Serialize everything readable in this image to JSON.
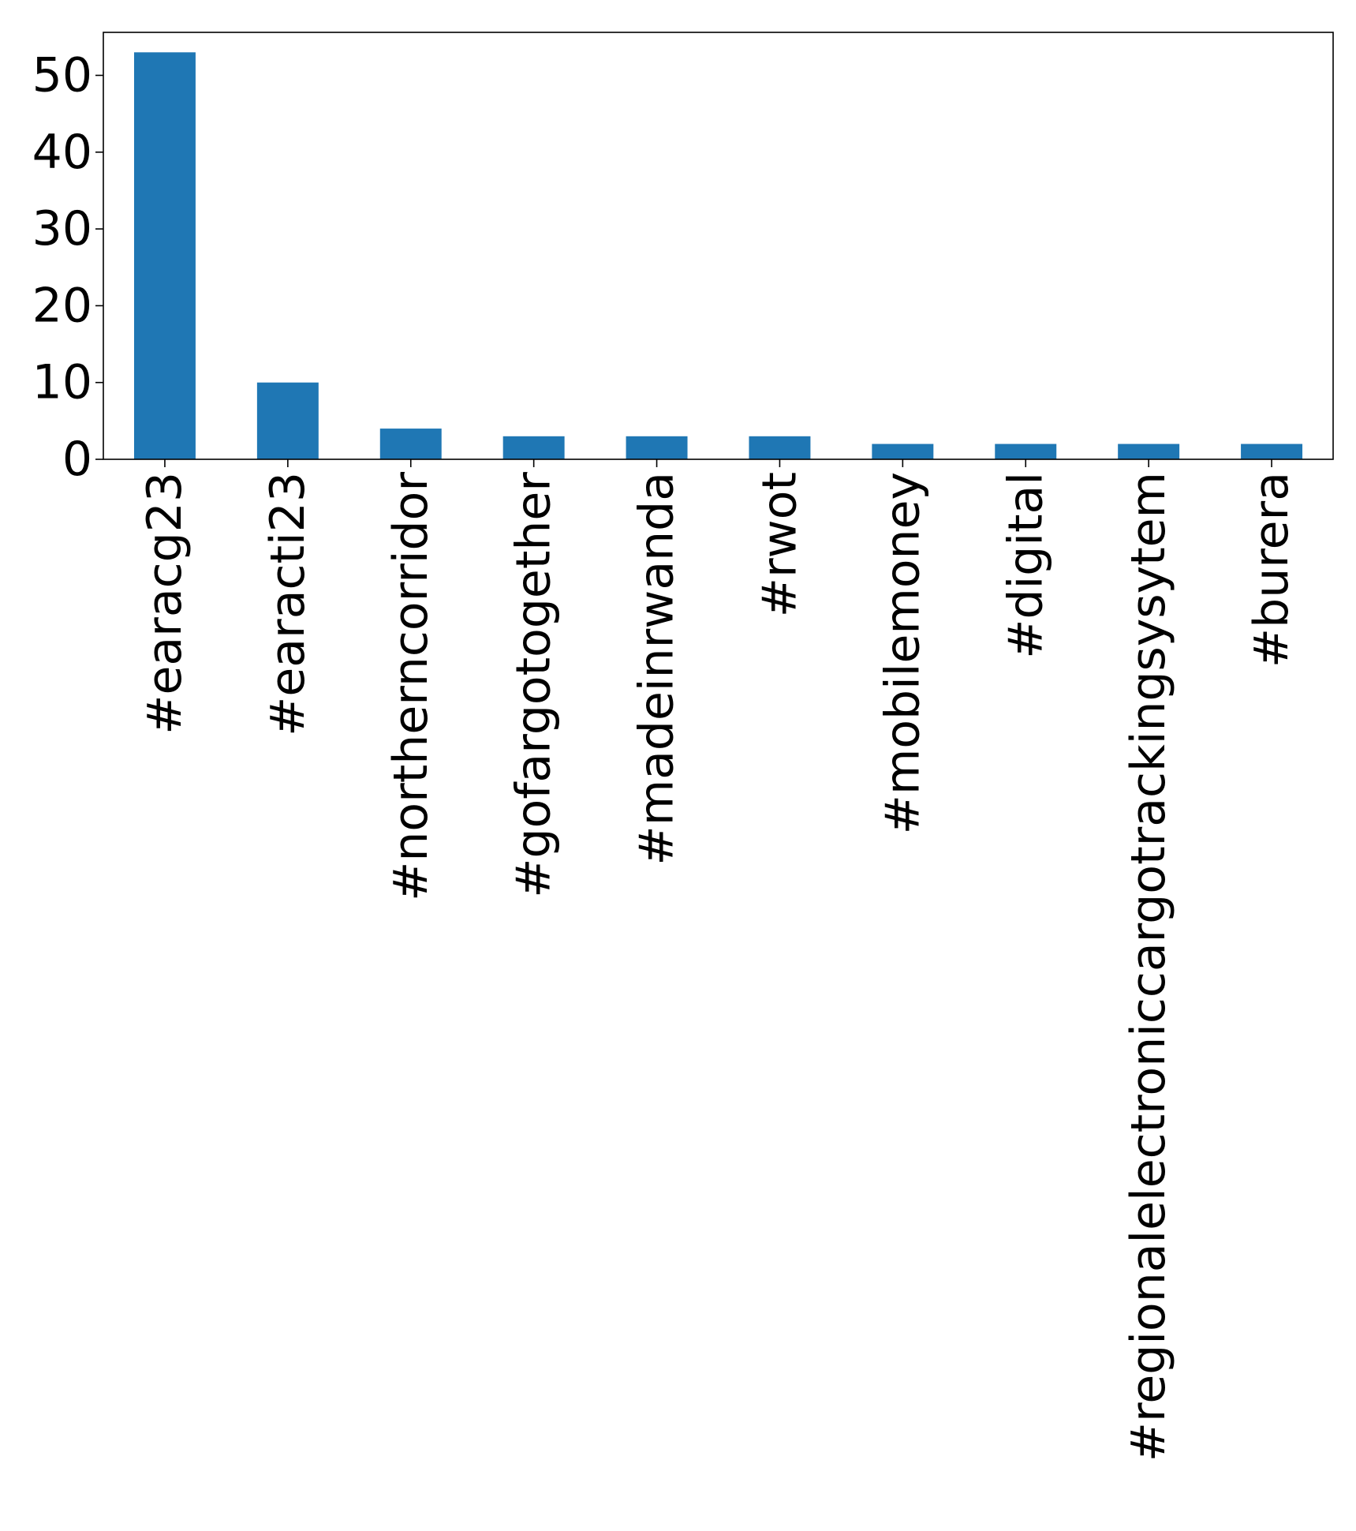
{
  "chart_data": {
    "type": "bar",
    "categories": [
      "#earacg23",
      "#earacti23",
      "#northerncorridor",
      "#gofargotogether",
      "#madeinrwanda",
      "#rwot",
      "#mobilemoney",
      "#digital",
      "#regionalelectroniccargotrackingsysytem",
      "#burera"
    ],
    "values": [
      53,
      10,
      4,
      3,
      3,
      3,
      2,
      2,
      2,
      2
    ],
    "title": "",
    "xlabel": "",
    "ylabel": "",
    "ylim": [
      0,
      55.6
    ],
    "yticks": [
      0,
      10,
      20,
      30,
      40,
      50
    ],
    "ytick_labels": [
      "0",
      "10",
      "20",
      "30",
      "40",
      "50"
    ],
    "grid": false,
    "bar_color": "#1f77b4"
  }
}
